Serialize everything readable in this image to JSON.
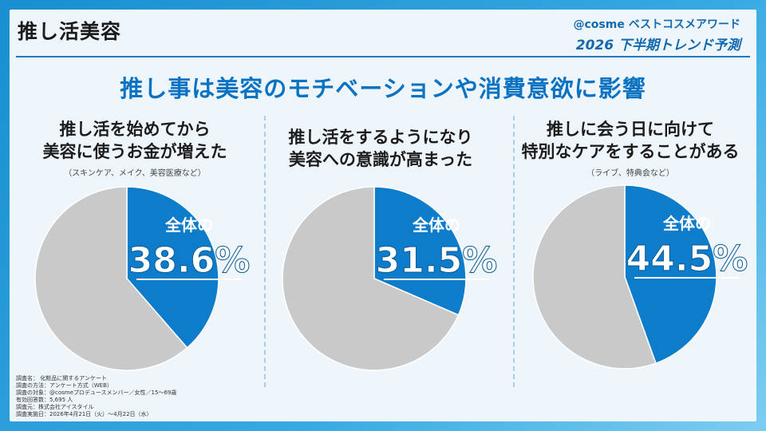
{
  "header": {
    "topic": "推し活美容",
    "brand_line1": "@cosme ベストコスメアワード",
    "brand_line2": "2026 下半期トレンド予測"
  },
  "headline": "推し事は美容のモチベーションや消費意欲に影響",
  "columns": [
    {
      "title_line1": "推し活を始めてから",
      "title_line2": "美容に使うお金が増えた",
      "note": "（スキンケア、メイク、美容医療など）"
    },
    {
      "title_line1": "推し活をするようになり",
      "title_line2": "美容への意識が高まった",
      "note": ""
    },
    {
      "title_line1": "推しに会う日に向けて",
      "title_line2": "特別なケアをすることがある",
      "note": "（ライブ、特典会など）"
    }
  ],
  "chart_data": [
    {
      "type": "pie",
      "categories": [
        "全体",
        ""
      ],
      "values": [
        38.6,
        61.4
      ],
      "label_prefix": "全体の",
      "label_value": "38.6%",
      "colors": [
        "#0d7ccb",
        "#c9c9c9"
      ]
    },
    {
      "type": "pie",
      "categories": [
        "全体",
        ""
      ],
      "values": [
        31.5,
        68.5
      ],
      "label_prefix": "全体の",
      "label_value": "31.5%",
      "colors": [
        "#0d7ccb",
        "#c9c9c9"
      ]
    },
    {
      "type": "pie",
      "categories": [
        "全体",
        ""
      ],
      "values": [
        44.5,
        55.5
      ],
      "label_prefix": "全体の",
      "label_value": "44.5%",
      "colors": [
        "#0d7ccb",
        "#c9c9c9"
      ]
    }
  ],
  "footnote": [
    "調査名： 化粧品に関するアンケート",
    "調査の方法：アンケート方式（WEB）",
    "調査の対象：@cosmeプロデュースメンバー／女性／15～69歳",
    "有効回答数：5,695 人",
    "調査元：株式会社アイスタイル",
    "調査実施日：2026年4月21日（火）～4月22日（水）"
  ]
}
